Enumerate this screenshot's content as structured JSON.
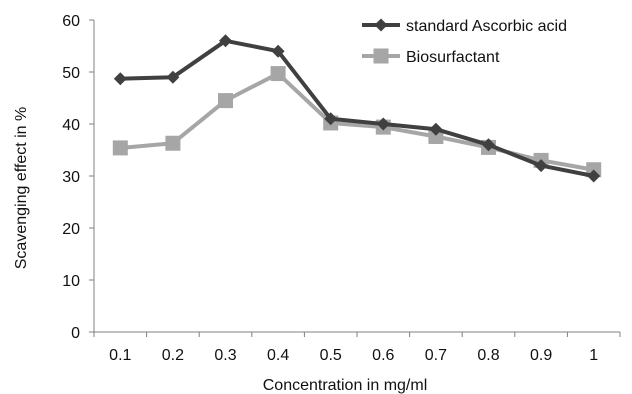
{
  "chart_data": {
    "type": "line",
    "title": "",
    "xlabel": "Concentration in mg/ml",
    "ylabel": "Scavenging effect in %",
    "categories": [
      "0.1",
      "0.2",
      "0.3",
      "0.4",
      "0.5",
      "0.6",
      "0.7",
      "0.8",
      "0.9",
      "1"
    ],
    "ylim": [
      0,
      60
    ],
    "yticks": [
      "0",
      "10",
      "20",
      "30",
      "40",
      "50",
      "60"
    ],
    "grid": false,
    "legend_position": "top-right",
    "series": [
      {
        "name": "standard Ascorbic acid",
        "marker": "diamond",
        "color": "#404040",
        "values": [
          48.7,
          49.0,
          56.0,
          54.0,
          41.0,
          40.0,
          39.0,
          36.0,
          32.0,
          30.0
        ]
      },
      {
        "name": "Biosurfactant",
        "marker": "square",
        "color": "#a6a6a6",
        "values": [
          35.4,
          36.3,
          44.5,
          49.7,
          40.2,
          39.4,
          37.6,
          35.5,
          33.0,
          31.2
        ]
      }
    ]
  }
}
